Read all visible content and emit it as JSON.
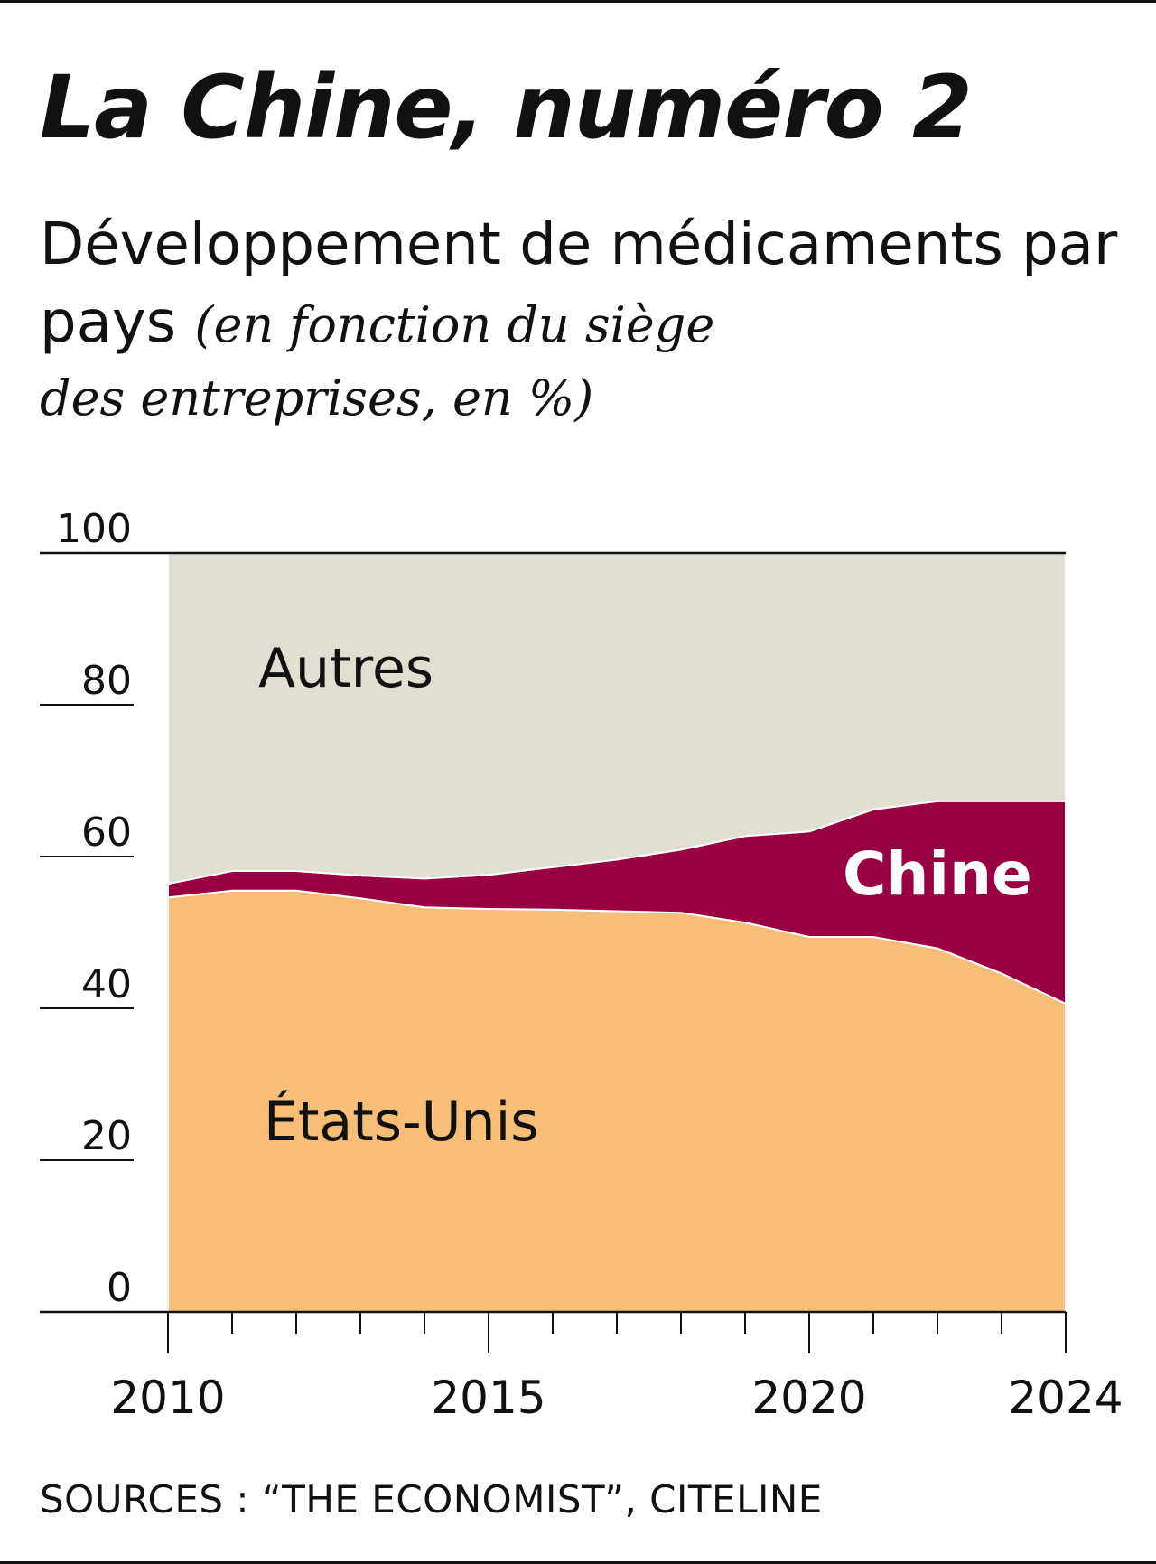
{
  "title": "La Chine, numéro 2",
  "subtitle": {
    "main": "Développement de médicaments par pays",
    "note_line1": "(en fonction du siège",
    "note_line2": "des entreprises, en %)"
  },
  "source": "SOURCES : “THE ECONOMIST”, CITELINE",
  "chart_data": {
    "type": "area",
    "stacked": true,
    "x": [
      2010,
      2011,
      2012,
      2013,
      2014,
      2015,
      2016,
      2017,
      2018,
      2019,
      2020,
      2021,
      2022,
      2023,
      2024
    ],
    "series": [
      {
        "name": "États-Unis",
        "color": "#f8bd77",
        "values": [
          54.6,
          55.5,
          55.5,
          54.5,
          53.3,
          53.1,
          53.0,
          52.8,
          52.6,
          51.3,
          49.4,
          49.4,
          47.9,
          44.6,
          40.6
        ]
      },
      {
        "name": "Chine",
        "color": "#990041",
        "values": [
          1.8,
          2.6,
          2.6,
          3.0,
          3.8,
          4.5,
          5.6,
          6.8,
          8.3,
          11.4,
          13.9,
          16.8,
          19.4,
          22.7,
          26.7
        ]
      },
      {
        "name": "Autres",
        "color": "#e1dfd1",
        "values": [
          43.6,
          41.9,
          41.9,
          42.5,
          42.9,
          42.4,
          41.4,
          40.4,
          39.1,
          37.3,
          36.7,
          33.8,
          32.7,
          32.7,
          32.7
        ]
      }
    ],
    "series_labels": {
      "autres": "Autres",
      "chine": "Chine",
      "etats_unis": "États-Unis"
    },
    "y_ticks": [
      "100",
      "80",
      "60",
      "40",
      "20",
      "0"
    ],
    "x_tick_labels": [
      "2010",
      "2015",
      "2020",
      "2024"
    ],
    "ylim": [
      0,
      100
    ],
    "xlim": [
      2010,
      2024
    ],
    "grid": false
  }
}
